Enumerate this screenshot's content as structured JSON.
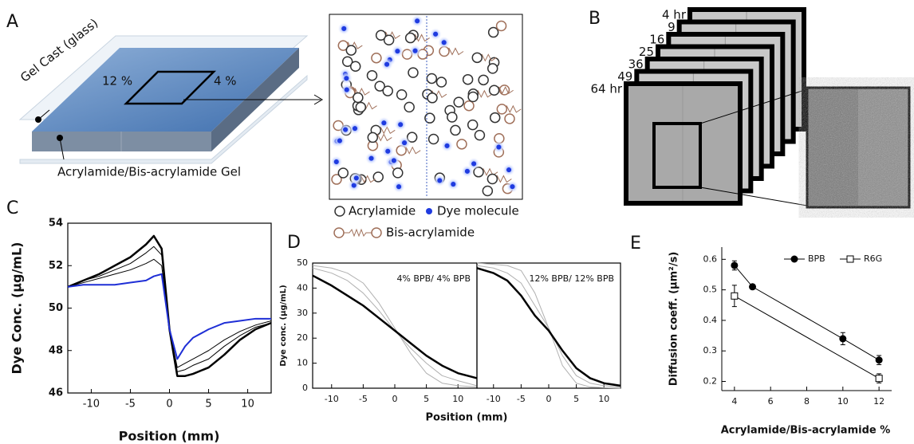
{
  "panel_a": {
    "label": "A",
    "gel_cast": "Gel Cast (glass)",
    "left_percent": "12 %",
    "right_percent": "4 %",
    "gel": "Acrylamide/Bis-acrylamide Gel",
    "legend": [
      "Acrylamide",
      "Dye molecule",
      "Bis-acrylamide"
    ]
  },
  "panel_b": {
    "label": "B",
    "times": [
      "4 hr",
      "9",
      "16",
      "25",
      "36",
      "49",
      "64 hr"
    ]
  },
  "chart_data": [
    {
      "type": "line",
      "panel_label": "C",
      "xlabel": "Position (mm)",
      "ylabel": "Dye Conc. (µg/mL)",
      "xlim": [
        -13,
        13
      ],
      "xticks": [
        -10,
        -5,
        0,
        5,
        10
      ],
      "ylim": [
        46,
        54
      ],
      "yticks": [
        46,
        48,
        50,
        52,
        54
      ],
      "x": [
        -13,
        -11,
        -9,
        -7,
        -5,
        -3,
        -2,
        -1,
        0,
        1,
        2,
        3,
        5,
        7,
        9,
        11,
        13
      ],
      "series": [
        {
          "color": "#000000",
          "width": 1,
          "values": [
            51.0,
            51.2,
            51.4,
            51.6,
            51.8,
            52.1,
            52.3,
            52.0,
            49.0,
            47.2,
            47.4,
            47.6,
            48.0,
            48.5,
            48.9,
            49.2,
            49.4
          ]
        },
        {
          "color": "#000000",
          "width": 1,
          "values": [
            51.0,
            51.3,
            51.5,
            51.8,
            52.1,
            52.6,
            52.9,
            52.5,
            49.0,
            47.0,
            47.1,
            47.3,
            47.6,
            48.2,
            48.7,
            49.1,
            49.3
          ]
        },
        {
          "color": "#000000",
          "width": 2.5,
          "values": [
            51.0,
            51.3,
            51.6,
            52.0,
            52.4,
            53.0,
            53.4,
            52.8,
            49.0,
            46.8,
            46.8,
            46.9,
            47.2,
            47.8,
            48.5,
            49.0,
            49.3
          ]
        },
        {
          "color": "#1f2fd6",
          "width": 2,
          "values": [
            51.0,
            51.1,
            51.1,
            51.1,
            51.2,
            51.3,
            51.5,
            51.6,
            49.0,
            47.6,
            48.2,
            48.6,
            49.0,
            49.3,
            49.4,
            49.5,
            49.5
          ]
        }
      ]
    },
    {
      "type": "line",
      "panel_label": "D",
      "xlabel": "Position (mm)",
      "ylabel": "Dye conc. (µg/mL)",
      "annotation": "4% BPB/ 4% BPB",
      "xlim": [
        -13,
        13
      ],
      "xticks": [
        -10,
        -5,
        0,
        5,
        10
      ],
      "ylim": [
        0,
        50
      ],
      "yticks": [
        0,
        10,
        20,
        30,
        40,
        50
      ],
      "x": [
        -13,
        -10,
        -7.5,
        -5,
        -2.5,
        0,
        2.5,
        5,
        7.5,
        10,
        13
      ],
      "series": [
        {
          "color": "#b0b0b0",
          "width": 1,
          "values": [
            49,
            48,
            46,
            42,
            34,
            24,
            14,
            6,
            2,
            1,
            0.5
          ]
        },
        {
          "color": "#b0b0b0",
          "width": 1,
          "values": [
            48,
            46,
            43,
            38,
            31,
            23,
            16,
            10,
            5,
            3,
            1
          ]
        },
        {
          "color": "#000000",
          "width": 2.5,
          "values": [
            45,
            41,
            37,
            33,
            28,
            23,
            18,
            13,
            9,
            6,
            4
          ]
        }
      ]
    },
    {
      "type": "line",
      "annotation": "12% BPB/ 12% BPB",
      "xlim": [
        -13,
        13
      ],
      "xticks": [
        -10,
        -5,
        0,
        5,
        10
      ],
      "ylim": [
        0,
        50
      ],
      "x": [
        -13,
        -10,
        -7.5,
        -5,
        -2.5,
        0,
        2.5,
        5,
        7.5,
        10,
        13
      ],
      "series": [
        {
          "color": "#b0b0b0",
          "width": 1,
          "values": [
            50,
            49.5,
            49,
            47,
            38,
            24,
            9,
            2,
            0.5,
            0.2,
            0
          ]
        },
        {
          "color": "#b0b0b0",
          "width": 1,
          "values": [
            49,
            48,
            46,
            42,
            33,
            24,
            13,
            5,
            2,
            1,
            0.5
          ]
        },
        {
          "color": "#000000",
          "width": 2.5,
          "values": [
            48,
            46,
            43,
            37,
            29,
            23,
            15,
            8,
            4,
            2,
            1
          ]
        }
      ]
    },
    {
      "type": "errorbar",
      "panel_label": "E",
      "xlabel": "Acrylamide/Bis-acrylamide %",
      "ylabel": "Diffusion coeff. (µm²/s)",
      "legend": "upper right",
      "xlim": [
        3.3,
        12.7
      ],
      "xticks": [
        4,
        6,
        8,
        10,
        12
      ],
      "ylim": [
        0.17,
        0.64
      ],
      "yticks": [
        0.2,
        0.3,
        0.4,
        0.5,
        0.6
      ],
      "series": [
        {
          "name": "BPB",
          "color": "#000000",
          "marker": "filled",
          "x": [
            4,
            5,
            10,
            12
          ],
          "values": [
            0.58,
            0.51,
            0.34,
            0.27
          ],
          "errors": [
            0.015,
            0.005,
            0.02,
            0.015
          ]
        },
        {
          "name": "R6G",
          "color": "#000000",
          "marker": "open",
          "x": [
            4,
            12
          ],
          "values": [
            0.48,
            0.21
          ],
          "errors": [
            0.035,
            0.015
          ]
        }
      ]
    }
  ]
}
